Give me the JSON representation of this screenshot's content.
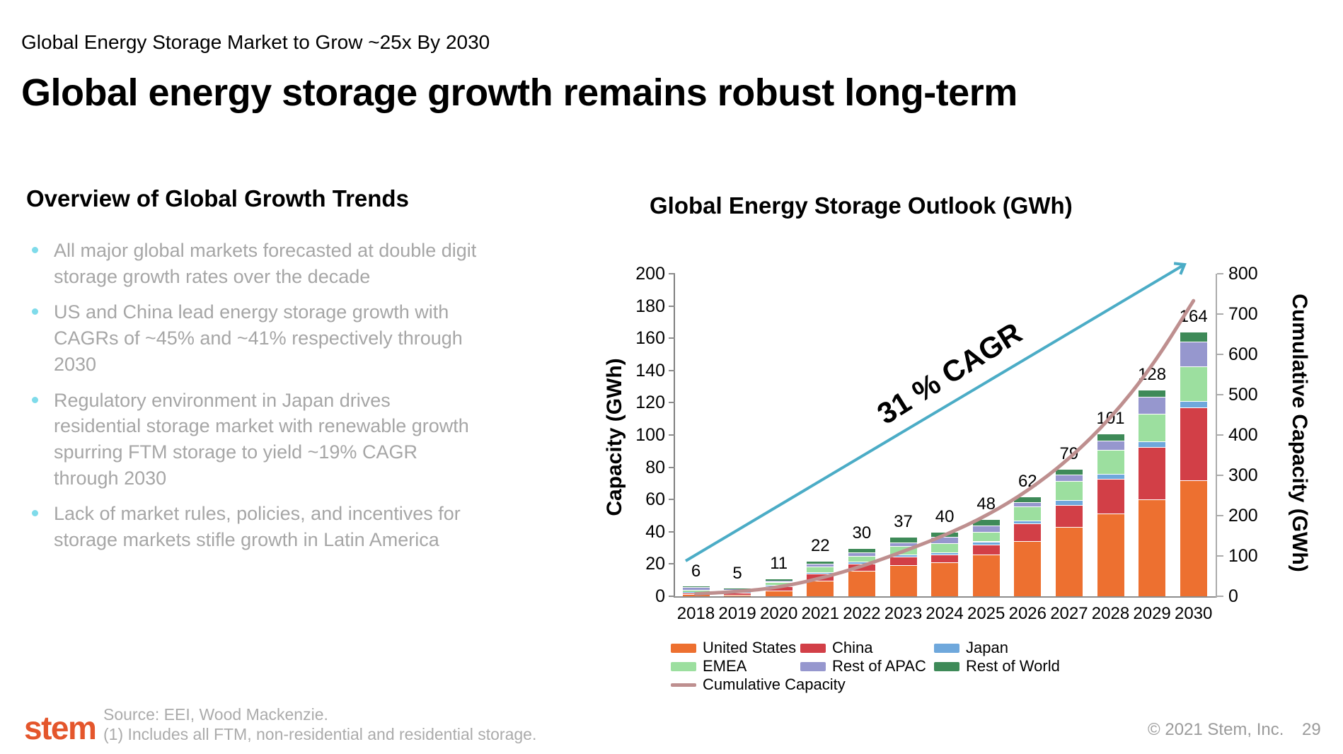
{
  "page": {
    "kicker": "Global Energy Storage Market to Grow ~25x By 2030",
    "title": "Global energy storage growth remains robust long-term"
  },
  "left_panel": {
    "heading": "Overview of Global Growth Trends",
    "bullet_color": "#7FDBEA",
    "bullets": [
      "All major global markets forecasted at double digit storage growth rates over the decade",
      "US and China lead energy storage growth with CAGRs of ~45% and ~41% respectively through 2030",
      "Regulatory environment in Japan drives residential storage market with renewable growth spurring FTM storage to yield ~19% CAGR through 2030",
      "Lack of market rules, policies, and incentives for storage markets stifle growth in Latin America"
    ]
  },
  "chart": {
    "title": "Global Energy Storage Outlook (GWh)"
  },
  "chart_data": {
    "type": "bar",
    "stacked": true,
    "title": "Global Energy Storage Outlook (GWh)",
    "categories": [
      "2018",
      "2019",
      "2020",
      "2021",
      "2022",
      "2023",
      "2024",
      "2025",
      "2026",
      "2027",
      "2028",
      "2029",
      "2030"
    ],
    "series": [
      {
        "name": "United States",
        "color": "#ED7030",
        "values": [
          1.5,
          1,
          3.5,
          9.5,
          16,
          19.5,
          21,
          26,
          34,
          43,
          51.5,
          60,
          72
        ]
      },
      {
        "name": "China",
        "color": "#D23F47",
        "values": [
          0.5,
          1,
          2.5,
          4.5,
          4,
          5,
          5,
          6,
          11,
          13.5,
          21.5,
          32.5,
          45
        ]
      },
      {
        "name": "Japan",
        "color": "#6FA8DC",
        "values": [
          0.5,
          0.5,
          1,
          1,
          1.5,
          1.5,
          1,
          2,
          2,
          3,
          3,
          3.5,
          4
        ]
      },
      {
        "name": "EMEA",
        "color": "#9CDF9F",
        "values": [
          1.5,
          1.5,
          2,
          3.5,
          3.5,
          5,
          6,
          6,
          8.5,
          12,
          15,
          17,
          21.5
        ]
      },
      {
        "name": "Rest of APAC",
        "color": "#9697CE",
        "values": [
          1.5,
          0.5,
          0.5,
          1.5,
          2,
          2.5,
          4,
          4,
          3,
          4,
          5.5,
          10.5,
          15.5
        ]
      },
      {
        "name": "Rest of World",
        "color": "#3E8A58",
        "values": [
          0.5,
          0.5,
          1.5,
          2,
          3,
          3.5,
          3,
          4,
          3.5,
          3.5,
          4.5,
          4.5,
          6
        ]
      }
    ],
    "bar_totals": [
      6,
      5,
      11,
      22,
      30,
      37,
      40,
      48,
      62,
      79,
      101,
      128,
      164
    ],
    "line_series": {
      "name": "Cumulative Capacity",
      "color": "#BE8F8F",
      "axis": "right",
      "values": [
        6,
        11,
        22,
        44,
        74,
        111,
        151,
        199,
        261,
        340,
        441,
        569,
        733
      ]
    },
    "left_axis": {
      "label": "Capacity (GWh)",
      "min": 0,
      "max": 200,
      "ticks": [
        0,
        20,
        40,
        60,
        80,
        100,
        120,
        140,
        160,
        180,
        200
      ]
    },
    "right_axis": {
      "label": "Cumulative Capacity (GWh)",
      "min": 0,
      "max": 800,
      "ticks": [
        0,
        100,
        200,
        300,
        400,
        500,
        600,
        700,
        800
      ]
    },
    "annotation": {
      "text": "31 % CAGR",
      "arrow_color": "#4BACC6"
    },
    "legend_position": "bottom",
    "grid": false
  },
  "footer": {
    "logo_text": "stem",
    "logo_color": "#E4562C",
    "source_line1": "Source: EEI, Wood Mackenzie.",
    "source_line2": "(1) Includes all FTM, non-residential and residential storage.",
    "copyright": "© 2021 Stem, Inc.",
    "page_number": "29"
  }
}
